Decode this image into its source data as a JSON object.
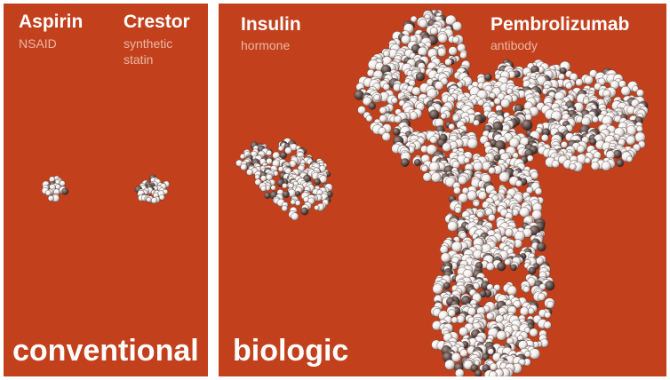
{
  "panels": {
    "conventional": {
      "category_label": "conventional",
      "molecules": [
        {
          "name": "Aspirin",
          "subtitle": "NSAID"
        },
        {
          "name": "Crestor",
          "subtitle": "synthetic\nstatin"
        }
      ]
    },
    "biologic": {
      "category_label": "biologic",
      "molecules": [
        {
          "name": "Insulin",
          "subtitle": "hormone"
        },
        {
          "name": "Pembrolizumab",
          "subtitle": "antibody"
        }
      ]
    }
  },
  "colors": {
    "panel_background": "#c3401c",
    "label_text": "#ffffff",
    "subtitle_text": "#eab8a4",
    "molecule_atom_light": "#f2ecea",
    "molecule_atom_dark": "#5a4a46"
  },
  "illustrations": [
    "aspirin-molecule",
    "crestor-molecule",
    "insulin-molecule",
    "pembrolizumab-antibody-molecule"
  ]
}
